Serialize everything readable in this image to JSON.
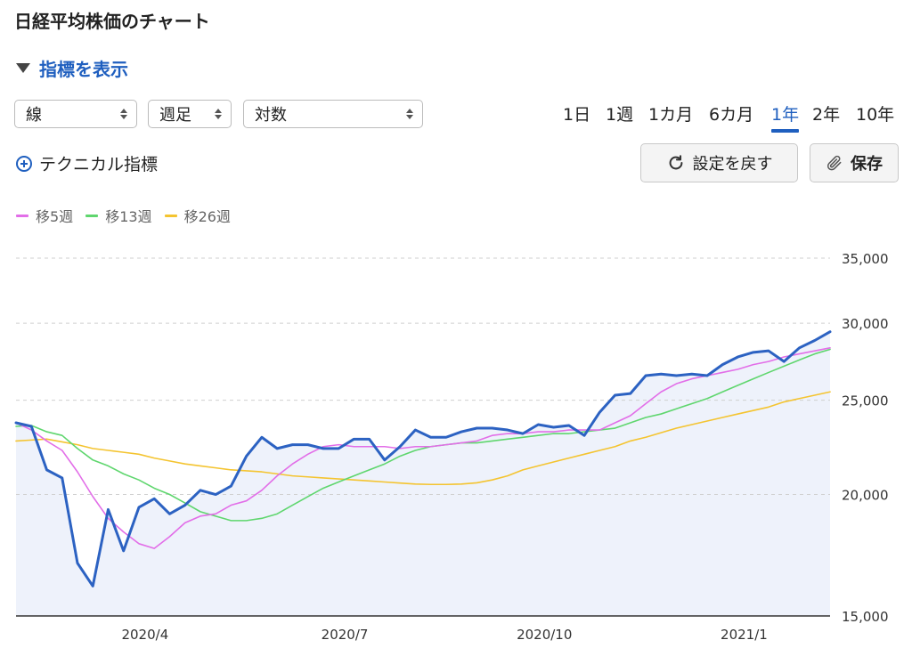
{
  "header": {
    "title": "日経平均株価のチャート"
  },
  "indicator_toggle": {
    "label": "指標を表示",
    "icon": "triangle-down-icon"
  },
  "controls": {
    "chart_type": "線",
    "period": "週足",
    "scale": "対数"
  },
  "ranges": [
    {
      "label": "1日",
      "active": false
    },
    {
      "label": "1週",
      "active": false
    },
    {
      "label": "1カ月",
      "active": false
    },
    {
      "label": "6カ月",
      "active": false
    },
    {
      "label": "1年",
      "active": true
    },
    {
      "label": "2年",
      "active": false
    },
    {
      "label": "10年",
      "active": false
    }
  ],
  "technical": {
    "label": "テクニカル指標",
    "icon": "plus-circle-icon"
  },
  "buttons": {
    "reset": "設定を戻す",
    "save": "保存",
    "reset_icon": "refresh-icon",
    "save_icon": "paperclip-icon"
  },
  "colors": {
    "accent": "#1f5fbf",
    "price": "#2c62c2",
    "ma5": "#e26ee8",
    "ma13": "#5fd66e",
    "ma26": "#f4c430",
    "area": "#eef2fb"
  },
  "chart_data": {
    "type": "line",
    "scale": "log",
    "ylim": [
      15000,
      35000
    ],
    "yticks": [
      35000,
      30000,
      25000,
      20000,
      15000
    ],
    "ytick_labels": [
      "35,000",
      "30,000",
      "25,000",
      "20,000",
      "15,000"
    ],
    "xtick_labels": [
      "2020/4",
      "2020/7",
      "2020/10",
      "2021/1"
    ],
    "xtick_index": [
      8.4,
      21.4,
      34.4,
      47.4
    ],
    "n_points": 54,
    "grid": true,
    "legend_position": "top-left",
    "series": [
      {
        "name": "",
        "role": "price",
        "values": [
          23700,
          23500,
          21200,
          20800,
          17000,
          16100,
          19300,
          17500,
          19400,
          19800,
          19100,
          19500,
          20200,
          20000,
          20400,
          21900,
          22900,
          22300,
          22500,
          22500,
          22300,
          22300,
          22800,
          22800,
          21700,
          22400,
          23300,
          22900,
          22900,
          23200,
          23400,
          23400,
          23300,
          23100,
          23600,
          23450,
          23550,
          23000,
          24300,
          25300,
          25400,
          26500,
          26600,
          26500,
          26600,
          26500,
          27200,
          27700,
          28000,
          28100,
          27400,
          28300,
          28800,
          29400
        ]
      },
      {
        "name": "移5週",
        "role": "ma5",
        "values": [
          23700,
          23300,
          22700,
          22200,
          21100,
          19900,
          18900,
          18300,
          17800,
          17600,
          18100,
          18700,
          19000,
          19100,
          19500,
          19700,
          20200,
          20900,
          21500,
          22000,
          22400,
          22500,
          22400,
          22400,
          22400,
          22300,
          22400,
          22400,
          22500,
          22600,
          22700,
          23000,
          23100,
          23100,
          23200,
          23200,
          23300,
          23300,
          23300,
          23700,
          24100,
          24800,
          25500,
          26000,
          26300,
          26500,
          26700,
          26900,
          27200,
          27400,
          27700,
          27900,
          28100,
          28300
        ]
      },
      {
        "name": "移13週",
        "role": "ma13",
        "values": [
          23500,
          23550,
          23200,
          23000,
          22300,
          21700,
          21400,
          21000,
          20700,
          20300,
          20000,
          19600,
          19200,
          19000,
          18800,
          18800,
          18900,
          19100,
          19500,
          19900,
          20300,
          20600,
          20900,
          21200,
          21500,
          21900,
          22200,
          22400,
          22500,
          22600,
          22600,
          22700,
          22800,
          22900,
          23000,
          23100,
          23100,
          23200,
          23300,
          23400,
          23700,
          24000,
          24200,
          24500,
          24800,
          25100,
          25500,
          25900,
          26300,
          26700,
          27100,
          27500,
          27900,
          28200
        ]
      },
      {
        "name": "移26週",
        "role": "ma26",
        "values": [
          22700,
          22750,
          22800,
          22650,
          22500,
          22300,
          22200,
          22100,
          22000,
          21800,
          21650,
          21500,
          21400,
          21300,
          21200,
          21150,
          21100,
          21000,
          20900,
          20850,
          20800,
          20750,
          20700,
          20650,
          20600,
          20550,
          20500,
          20480,
          20480,
          20500,
          20560,
          20700,
          20900,
          21200,
          21400,
          21600,
          21800,
          22000,
          22200,
          22400,
          22700,
          22900,
          23150,
          23400,
          23600,
          23800,
          24000,
          24200,
          24400,
          24600,
          24900,
          25100,
          25300,
          25500
        ]
      }
    ]
  }
}
